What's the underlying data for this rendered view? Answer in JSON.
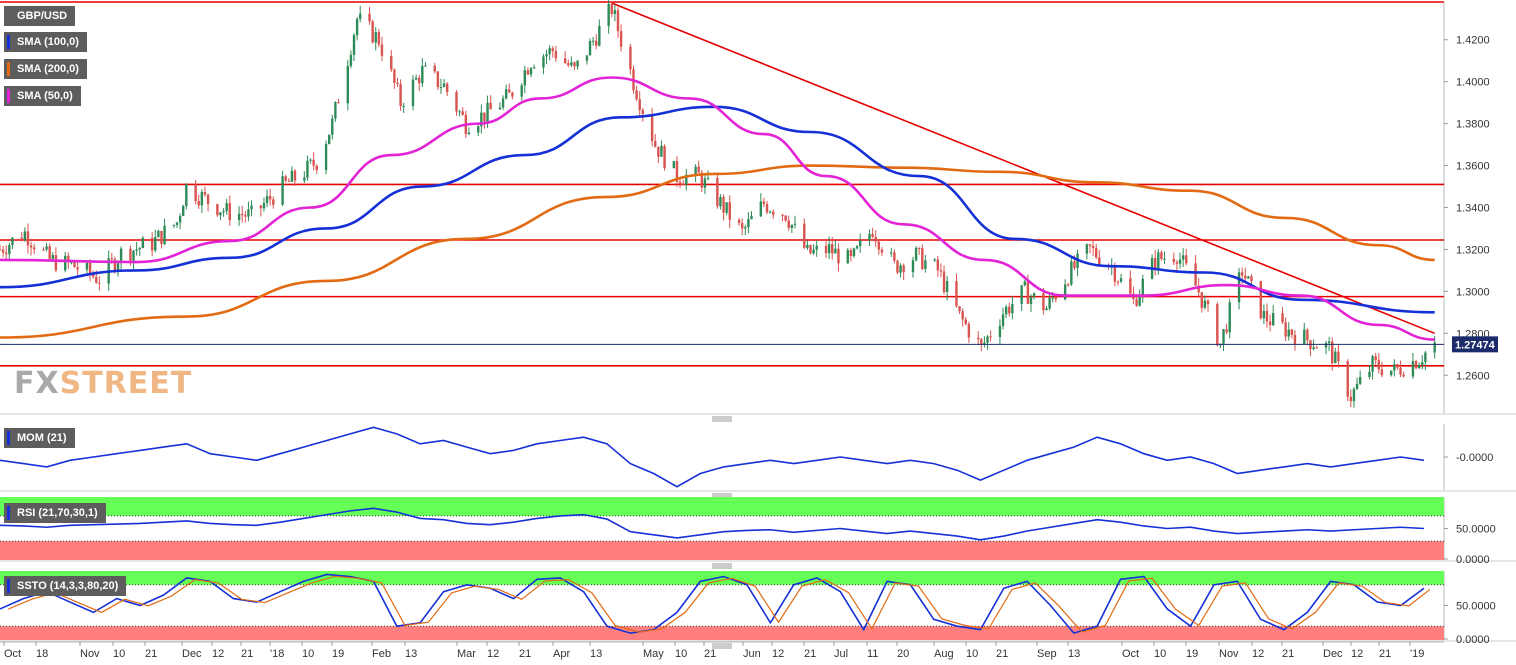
{
  "legend": [
    {
      "label": "GBP/USD",
      "color": "#5d5d5d"
    },
    {
      "label": "SMA (100,0)",
      "color": "#1530d6"
    },
    {
      "label": "SMA (200,0)",
      "color": "#e26a12"
    },
    {
      "label": "SMA (50,0)",
      "color": "#e223d6"
    }
  ],
  "watermark": {
    "fx": "FX",
    "street": "STREET"
  },
  "indicators": {
    "mom": {
      "label": "MOM (21)",
      "color": "#1530d6"
    },
    "rsi": {
      "label": "RSI (21,70,30,1)",
      "color": "#1530d6"
    },
    "ssto": {
      "label": "SSTO (14,3,3,80,20)",
      "color": "#1530d6"
    }
  },
  "colors": {
    "up_candle": "#2e8b57",
    "down_candle": "#d9534f",
    "sma50": "#e223d6",
    "sma100": "#1530d6",
    "sma200": "#e26a12",
    "levels": "#e60000",
    "overbought_zone": "#66ff55",
    "oversold_zone": "#ff7f7f"
  },
  "chart_data": [
    {
      "type": "candlestick",
      "pair": "GBP/USD",
      "y_range": [
        1.242,
        1.438
      ],
      "y_ticks": [
        "1.4200",
        "1.4000",
        "1.3800",
        "1.3600",
        "1.3400",
        "1.3200",
        "1.3000",
        "1.2800",
        "1.2600"
      ],
      "x_labels": [
        "Oct",
        "18",
        "Nov",
        "10",
        "21",
        "Dec",
        "12",
        "21",
        "'18",
        "10",
        "19",
        "Feb",
        "13",
        "Mar",
        "12",
        "21",
        "Apr",
        "13",
        "May",
        "10",
        "21",
        "Jun",
        "12",
        "21",
        "Jul",
        "11",
        "20",
        "Aug",
        "10",
        "21",
        "Sep",
        "13",
        "Oct",
        "10",
        "19",
        "Nov",
        "12",
        "21",
        "Dec",
        "12",
        "21",
        "'19"
      ],
      "last_price": "1.27474",
      "horizontal_levels": [
        1.438,
        1.351,
        1.3245,
        1.2975,
        1.2645
      ],
      "trendline": {
        "from": {
          "date": "2018-04-17",
          "value": 1.4375
        },
        "to": {
          "date": "2019-01-07",
          "value": 1.28
        }
      },
      "price_path": [
        [
          "2017-10-02",
          1.32
        ],
        [
          "2017-10-10",
          1.328
        ],
        [
          "2017-10-18",
          1.315
        ],
        [
          "2017-10-26",
          1.312
        ],
        [
          "2017-11-03",
          1.306
        ],
        [
          "2017-11-10",
          1.318
        ],
        [
          "2017-11-20",
          1.323
        ],
        [
          "2017-11-28",
          1.333
        ],
        [
          "2017-12-01",
          1.35
        ],
        [
          "2017-12-08",
          1.343
        ],
        [
          "2017-12-14",
          1.338
        ],
        [
          "2017-12-22",
          1.336
        ],
        [
          "2018-01-01",
          1.35
        ],
        [
          "2018-01-08",
          1.357
        ],
        [
          "2018-01-12",
          1.362
        ],
        [
          "2018-01-17",
          1.38
        ],
        [
          "2018-01-25",
          1.43
        ],
        [
          "2018-02-01",
          1.42
        ],
        [
          "2018-02-08",
          1.39
        ],
        [
          "2018-02-15",
          1.405
        ],
        [
          "2018-02-22",
          1.398
        ],
        [
          "2018-03-01",
          1.38
        ],
        [
          "2018-03-08",
          1.385
        ],
        [
          "2018-03-15",
          1.393
        ],
        [
          "2018-03-22",
          1.41
        ],
        [
          "2018-03-29",
          1.415
        ],
        [
          "2018-04-05",
          1.405
        ],
        [
          "2018-04-12",
          1.422
        ],
        [
          "2018-04-17",
          1.435
        ],
        [
          "2018-04-24",
          1.4
        ],
        [
          "2018-05-01",
          1.37
        ],
        [
          "2018-05-08",
          1.355
        ],
        [
          "2018-05-15",
          1.355
        ],
        [
          "2018-05-22",
          1.342
        ],
        [
          "2018-05-29",
          1.328
        ],
        [
          "2018-06-05",
          1.342
        ],
        [
          "2018-06-12",
          1.337
        ],
        [
          "2018-06-19",
          1.318
        ],
        [
          "2018-06-26",
          1.32
        ],
        [
          "2018-07-03",
          1.314
        ],
        [
          "2018-07-10",
          1.33
        ],
        [
          "2018-07-17",
          1.312
        ],
        [
          "2018-07-24",
          1.317
        ],
        [
          "2018-07-31",
          1.31
        ],
        [
          "2018-08-07",
          1.288
        ],
        [
          "2018-08-14",
          1.273
        ],
        [
          "2018-08-21",
          1.29
        ],
        [
          "2018-08-28",
          1.3
        ],
        [
          "2018-09-04",
          1.292
        ],
        [
          "2018-09-11",
          1.308
        ],
        [
          "2018-09-18",
          1.32
        ],
        [
          "2018-09-25",
          1.312
        ],
        [
          "2018-10-02",
          1.295
        ],
        [
          "2018-10-09",
          1.315
        ],
        [
          "2018-10-16",
          1.318
        ],
        [
          "2018-10-23",
          1.3
        ],
        [
          "2018-10-30",
          1.275
        ],
        [
          "2018-11-06",
          1.31
        ],
        [
          "2018-11-13",
          1.288
        ],
        [
          "2018-11-20",
          1.282
        ],
        [
          "2018-11-27",
          1.277
        ],
        [
          "2018-12-04",
          1.273
        ],
        [
          "2018-12-11",
          1.25
        ],
        [
          "2018-12-18",
          1.265
        ],
        [
          "2018-12-25",
          1.262
        ],
        [
          "2019-01-02",
          1.268
        ],
        [
          "2019-01-07",
          1.2747
        ]
      ],
      "sma50": [
        [
          "2017-10-02",
          1.315
        ],
        [
          "2017-11-15",
          1.314
        ],
        [
          "2017-12-15",
          1.324
        ],
        [
          "2018-01-10",
          1.34
        ],
        [
          "2018-02-05",
          1.365
        ],
        [
          "2018-03-05",
          1.38
        ],
        [
          "2018-03-25",
          1.392
        ],
        [
          "2018-04-17",
          1.402
        ],
        [
          "2018-05-12",
          1.392
        ],
        [
          "2018-06-05",
          1.375
        ],
        [
          "2018-06-25",
          1.355
        ],
        [
          "2018-07-20",
          1.332
        ],
        [
          "2018-08-15",
          1.315
        ],
        [
          "2018-09-10",
          1.298
        ],
        [
          "2018-10-05",
          1.298
        ],
        [
          "2018-11-01",
          1.303
        ],
        [
          "2018-11-25",
          1.298
        ],
        [
          "2018-12-20",
          1.284
        ],
        [
          "2019-01-07",
          1.277
        ]
      ],
      "sma100": [
        [
          "2017-10-02",
          1.302
        ],
        [
          "2017-11-15",
          1.31
        ],
        [
          "2017-12-15",
          1.316
        ],
        [
          "2018-01-15",
          1.33
        ],
        [
          "2018-02-15",
          1.35
        ],
        [
          "2018-03-20",
          1.365
        ],
        [
          "2018-04-20",
          1.383
        ],
        [
          "2018-05-20",
          1.388
        ],
        [
          "2018-06-20",
          1.376
        ],
        [
          "2018-07-25",
          1.355
        ],
        [
          "2018-08-25",
          1.325
        ],
        [
          "2018-09-25",
          1.312
        ],
        [
          "2018-10-25",
          1.309
        ],
        [
          "2018-11-25",
          1.296
        ],
        [
          "2019-01-07",
          1.29
        ]
      ],
      "sma200": [
        [
          "2017-10-02",
          1.278
        ],
        [
          "2017-12-01",
          1.288
        ],
        [
          "2018-01-15",
          1.305
        ],
        [
          "2018-03-01",
          1.325
        ],
        [
          "2018-04-15",
          1.345
        ],
        [
          "2018-05-20",
          1.356
        ],
        [
          "2018-06-20",
          1.36
        ],
        [
          "2018-07-20",
          1.359
        ],
        [
          "2018-08-20",
          1.357
        ],
        [
          "2018-09-20",
          1.352
        ],
        [
          "2018-10-20",
          1.348
        ],
        [
          "2018-11-20",
          1.335
        ],
        [
          "2018-12-20",
          1.322
        ],
        [
          "2019-01-07",
          1.315
        ]
      ]
    },
    {
      "type": "line",
      "name": "MOM (21)",
      "y_ticks": [
        "-0.0000"
      ],
      "values": [
        0.45,
        0.4,
        0.35,
        0.45,
        0.5,
        0.55,
        0.6,
        0.65,
        0.7,
        0.55,
        0.5,
        0.45,
        0.55,
        0.65,
        0.75,
        0.85,
        0.95,
        0.85,
        0.7,
        0.75,
        0.65,
        0.55,
        0.6,
        0.7,
        0.75,
        0.8,
        0.7,
        0.4,
        0.25,
        0.05,
        0.25,
        0.35,
        0.4,
        0.45,
        0.4,
        0.45,
        0.5,
        0.45,
        0.4,
        0.45,
        0.4,
        0.3,
        0.15,
        0.3,
        0.45,
        0.55,
        0.65,
        0.8,
        0.7,
        0.55,
        0.45,
        0.5,
        0.4,
        0.25,
        0.3,
        0.35,
        0.4,
        0.35,
        0.4,
        0.45,
        0.5,
        0.45
      ]
    },
    {
      "type": "line",
      "name": "RSI (21,70,30,1)",
      "y_ticks": [
        "50.0000",
        "0.0000"
      ],
      "levels": [
        70,
        30
      ],
      "values": [
        55,
        54,
        52,
        55,
        56,
        57,
        58,
        60,
        62,
        58,
        56,
        55,
        60,
        66,
        72,
        78,
        82,
        76,
        66,
        64,
        58,
        56,
        60,
        66,
        70,
        72,
        65,
        45,
        40,
        35,
        40,
        45,
        47,
        48,
        44,
        47,
        50,
        46,
        42,
        46,
        42,
        38,
        32,
        38,
        46,
        52,
        58,
        64,
        60,
        54,
        50,
        52,
        46,
        42,
        44,
        46,
        48,
        46,
        48,
        50,
        52,
        50
      ]
    },
    {
      "type": "line",
      "name": "SSTO (14,3,3,80,20)",
      "y_ticks": [
        "50.0000",
        "0.0000"
      ],
      "levels": [
        80,
        20
      ],
      "values": [
        45,
        60,
        70,
        55,
        40,
        60,
        50,
        65,
        90,
        85,
        60,
        55,
        70,
        85,
        95,
        92,
        85,
        20,
        25,
        70,
        80,
        75,
        60,
        88,
        90,
        70,
        20,
        10,
        15,
        40,
        85,
        92,
        80,
        25,
        80,
        90,
        70,
        15,
        85,
        80,
        30,
        20,
        15,
        75,
        85,
        50,
        10,
        20,
        88,
        92,
        45,
        20,
        80,
        85,
        30,
        15,
        40,
        85,
        80,
        55,
        50,
        75
      ]
    }
  ]
}
